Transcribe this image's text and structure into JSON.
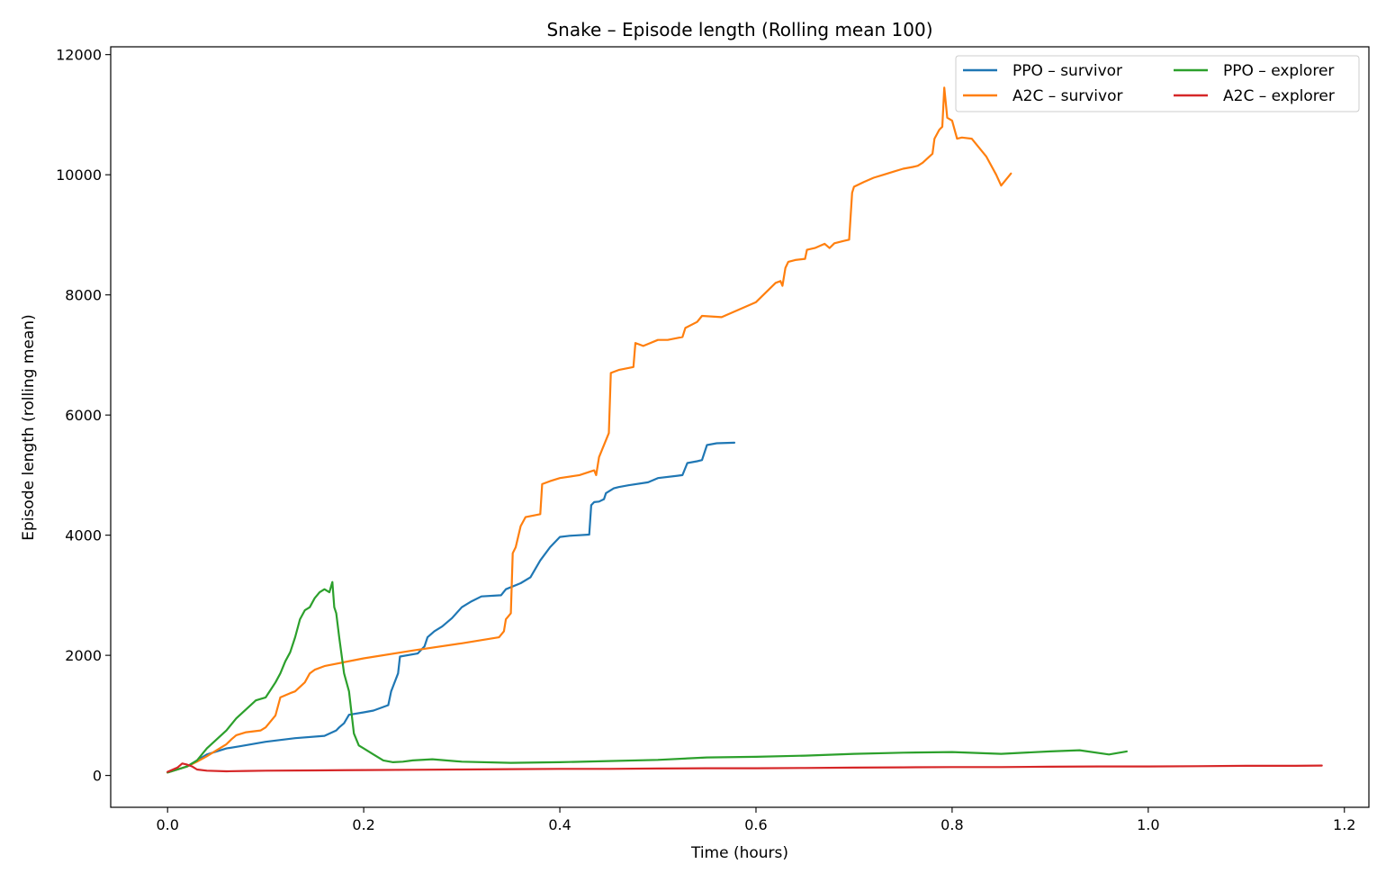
{
  "chart_data": {
    "type": "line",
    "title": "Snake – Episode length (Rolling mean 100)",
    "xlabel": "Time (hours)",
    "ylabel": "Episode length (rolling mean)",
    "xlim": [
      -0.058,
      1.225
    ],
    "ylim": [
      -530,
      12130
    ],
    "xticks": [
      0.0,
      0.2,
      0.4,
      0.6,
      0.8,
      1.0,
      1.2
    ],
    "xtick_labels": [
      "0.0",
      "0.2",
      "0.4",
      "0.6",
      "0.8",
      "1.0",
      "1.2"
    ],
    "yticks": [
      0,
      2000,
      4000,
      6000,
      8000,
      10000,
      12000
    ],
    "ytick_labels": [
      "0",
      "2000",
      "4000",
      "6000",
      "8000",
      "10000",
      "12000"
    ],
    "grid": false,
    "legend": {
      "placement": "top-right",
      "columns": 2
    },
    "series": [
      {
        "name": "PPO – survivor",
        "color": "#1f77b4",
        "x": [
          0.0,
          0.01,
          0.02,
          0.03,
          0.04,
          0.05,
          0.06,
          0.075,
          0.1,
          0.13,
          0.16,
          0.172,
          0.175,
          0.18,
          0.185,
          0.2,
          0.21,
          0.225,
          0.228,
          0.235,
          0.237,
          0.255,
          0.262,
          0.265,
          0.272,
          0.28,
          0.29,
          0.3,
          0.31,
          0.32,
          0.34,
          0.345,
          0.36,
          0.37,
          0.38,
          0.39,
          0.4,
          0.41,
          0.43,
          0.432,
          0.435,
          0.44,
          0.445,
          0.447,
          0.455,
          0.46,
          0.47,
          0.49,
          0.5,
          0.52,
          0.525,
          0.53,
          0.54,
          0.545,
          0.55,
          0.56,
          0.578
        ],
        "y": [
          50,
          100,
          150,
          250,
          350,
          400,
          450,
          490,
          560,
          620,
          660,
          750,
          800,
          870,
          1010,
          1050,
          1080,
          1170,
          1400,
          1700,
          1980,
          2030,
          2150,
          2300,
          2400,
          2480,
          2620,
          2800,
          2900,
          2980,
          3000,
          3100,
          3200,
          3300,
          3580,
          3800,
          3970,
          3990,
          4010,
          4500,
          4550,
          4560,
          4600,
          4700,
          4780,
          4800,
          4830,
          4880,
          4950,
          4990,
          5000,
          5200,
          5230,
          5250,
          5500,
          5530,
          5540
        ]
      },
      {
        "name": "A2C – survivor",
        "color": "#ff7f0e",
        "x": [
          0.0,
          0.01,
          0.02,
          0.03,
          0.04,
          0.05,
          0.06,
          0.065,
          0.07,
          0.08,
          0.095,
          0.1,
          0.11,
          0.115,
          0.125,
          0.13,
          0.14,
          0.145,
          0.15,
          0.16,
          0.2,
          0.25,
          0.3,
          0.338,
          0.343,
          0.345,
          0.35,
          0.352,
          0.355,
          0.36,
          0.365,
          0.38,
          0.382,
          0.39,
          0.4,
          0.42,
          0.435,
          0.437,
          0.44,
          0.45,
          0.452,
          0.46,
          0.475,
          0.477,
          0.485,
          0.5,
          0.51,
          0.525,
          0.528,
          0.54,
          0.545,
          0.565,
          0.6,
          0.62,
          0.625,
          0.627,
          0.63,
          0.633,
          0.64,
          0.65,
          0.652,
          0.66,
          0.67,
          0.675,
          0.68,
          0.69,
          0.695,
          0.698,
          0.7,
          0.71,
          0.72,
          0.73,
          0.74,
          0.75,
          0.76,
          0.765,
          0.77,
          0.78,
          0.782,
          0.787,
          0.79,
          0.792,
          0.795,
          0.8,
          0.805,
          0.81,
          0.82,
          0.835,
          0.845,
          0.85,
          0.86
        ],
        "y": [
          50,
          100,
          150,
          230,
          320,
          420,
          520,
          600,
          670,
          720,
          750,
          800,
          1000,
          1300,
          1370,
          1400,
          1550,
          1700,
          1760,
          1820,
          1950,
          2080,
          2200,
          2300,
          2400,
          2600,
          2700,
          3700,
          3800,
          4150,
          4300,
          4350,
          4850,
          4900,
          4950,
          5000,
          5080,
          5000,
          5300,
          5700,
          6700,
          6750,
          6800,
          7200,
          7150,
          7250,
          7250,
          7300,
          7450,
          7550,
          7650,
          7630,
          7880,
          8200,
          8230,
          8150,
          8450,
          8550,
          8580,
          8600,
          8750,
          8780,
          8850,
          8780,
          8860,
          8900,
          8920,
          9700,
          9800,
          9880,
          9950,
          10000,
          10050,
          10100,
          10130,
          10150,
          10200,
          10350,
          10600,
          10750,
          10800,
          11450,
          10950,
          10900,
          10600,
          10620,
          10600,
          10300,
          10000,
          9820,
          10020
        ]
      },
      {
        "name": "PPO – explorer",
        "color": "#2ca02c",
        "x": [
          0.0,
          0.01,
          0.02,
          0.03,
          0.04,
          0.05,
          0.06,
          0.07,
          0.08,
          0.09,
          0.1,
          0.11,
          0.115,
          0.12,
          0.125,
          0.13,
          0.135,
          0.14,
          0.145,
          0.15,
          0.155,
          0.16,
          0.165,
          0.168,
          0.17,
          0.172,
          0.175,
          0.18,
          0.185,
          0.19,
          0.195,
          0.2,
          0.21,
          0.22,
          0.23,
          0.24,
          0.25,
          0.27,
          0.3,
          0.35,
          0.4,
          0.45,
          0.5,
          0.55,
          0.6,
          0.65,
          0.7,
          0.75,
          0.8,
          0.85,
          0.9,
          0.93,
          0.96,
          0.978
        ],
        "y": [
          50,
          100,
          150,
          250,
          450,
          600,
          750,
          950,
          1100,
          1250,
          1300,
          1550,
          1700,
          1900,
          2050,
          2300,
          2600,
          2750,
          2800,
          2950,
          3050,
          3100,
          3050,
          3220,
          2800,
          2700,
          2300,
          1700,
          1400,
          700,
          500,
          450,
          350,
          250,
          220,
          230,
          250,
          270,
          230,
          210,
          220,
          240,
          260,
          300,
          310,
          330,
          360,
          380,
          390,
          360,
          400,
          420,
          350,
          400
        ]
      },
      {
        "name": "A2C – explorer",
        "color": "#d62728",
        "x": [
          0.0,
          0.01,
          0.015,
          0.02,
          0.025,
          0.03,
          0.04,
          0.06,
          0.08,
          0.1,
          0.15,
          0.2,
          0.25,
          0.3,
          0.35,
          0.4,
          0.45,
          0.5,
          0.55,
          0.6,
          0.65,
          0.7,
          0.75,
          0.8,
          0.85,
          0.9,
          0.95,
          1.0,
          1.05,
          1.1,
          1.15,
          1.177
        ],
        "y": [
          60,
          130,
          200,
          180,
          150,
          100,
          80,
          70,
          75,
          80,
          85,
          90,
          95,
          100,
          105,
          110,
          110,
          115,
          120,
          120,
          125,
          130,
          135,
          140,
          140,
          145,
          150,
          150,
          155,
          160,
          160,
          165
        ]
      }
    ]
  }
}
